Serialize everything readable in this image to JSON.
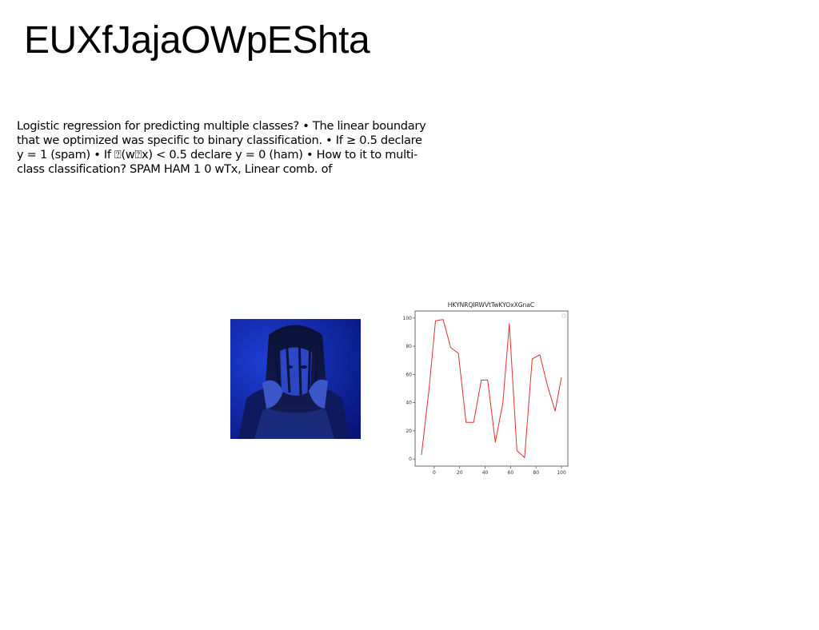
{
  "document": {
    "title": "EUXfJajaOWpEShta",
    "body": "Logistic regression for predicting multiple classes? • The linear boundary that we optimized was specific to binary classification. • If ≥ 0.5 declare y = 1 (spam) • If ⍰(w⍰x) < 0.5 declare y = 0 (ham) • How to it to multi-class classification? SPAM HAM 1 0 wTx, Linear comb. of"
  },
  "photo": {
    "subject": "person-in-blue-light"
  },
  "chart_data": {
    "type": "line",
    "title": "HKYNRQIRWVtTwKYOxXGnaC",
    "xlabel": "",
    "ylabel": "",
    "xlim": [
      -15,
      105
    ],
    "ylim": [
      -5,
      105
    ],
    "xticks": [
      0,
      20,
      40,
      60,
      80,
      100
    ],
    "yticks": [
      0,
      20,
      40,
      60,
      80,
      100
    ],
    "grid": false,
    "legend": "top-right",
    "color": "#e03030",
    "series": [
      {
        "x": [
          -10,
          -4,
          1,
          7,
          13,
          19,
          25,
          31,
          37,
          42,
          48,
          54,
          59,
          65,
          71,
          77,
          83,
          89,
          95,
          100
        ],
        "y": [
          3,
          50,
          98,
          99,
          79,
          75,
          26,
          26,
          56,
          56,
          12,
          40,
          96,
          6,
          1,
          71,
          74,
          52,
          34,
          58
        ]
      }
    ]
  }
}
